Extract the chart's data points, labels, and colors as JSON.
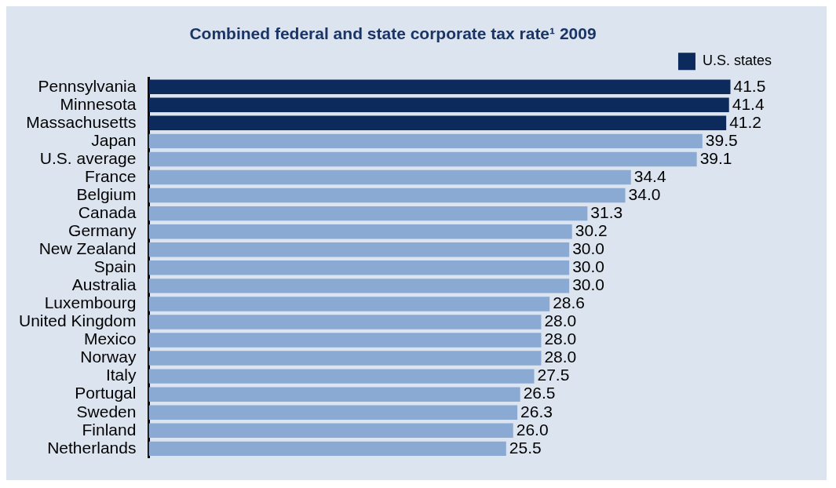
{
  "chart_data": {
    "type": "bar",
    "orientation": "horizontal",
    "stacked": true,
    "title": "Combined federal and state corporate tax rate¹ 2009",
    "categories": [
      "Pennsylvania",
      "Minnesota",
      "Massachusetts",
      "Japan",
      "U.S. average",
      "France",
      "Belgium",
      "Canada",
      "Germany",
      "New Zealand",
      "Spain",
      "Australia",
      "Luxembourg",
      "United Kingdom",
      "Mexico",
      "Norway",
      "Italy",
      "Portugal",
      "Sweden",
      "Finland",
      "Netherlands"
    ],
    "series": [
      {
        "name": "U.S. states",
        "color": "#0c2a5b",
        "values": [
          41.5,
          41.4,
          41.2,
          null,
          null,
          null,
          null,
          null,
          null,
          null,
          null,
          null,
          null,
          null,
          null,
          null,
          null,
          null,
          null,
          null,
          null
        ],
        "value_labels": [
          "41.5",
          "41.4",
          "41.2",
          null,
          null,
          null,
          null,
          null,
          null,
          null,
          null,
          null,
          null,
          null,
          null,
          null,
          null,
          null,
          null,
          null,
          null
        ]
      },
      {
        "color": "#8aaad4",
        "values": [
          null,
          null,
          null,
          39.5,
          39.1,
          34.4,
          34.0,
          31.3,
          30.2,
          30.0,
          30.0,
          30.0,
          28.6,
          28.0,
          28.0,
          28.0,
          27.5,
          26.5,
          26.3,
          26.0,
          25.5
        ],
        "value_labels": [
          null,
          null,
          null,
          "39.5",
          "39.1",
          "34.4",
          "34.0",
          "31.3",
          "30.2",
          "30.0",
          "30.0",
          "30.0",
          "28.6",
          "28.0",
          "28.0",
          "28.0",
          "27.5",
          "26.5",
          "26.3",
          "26.0",
          "25.5"
        ]
      }
    ],
    "legend": "top right",
    "grid": false,
    "tick_labels": "y"
  }
}
